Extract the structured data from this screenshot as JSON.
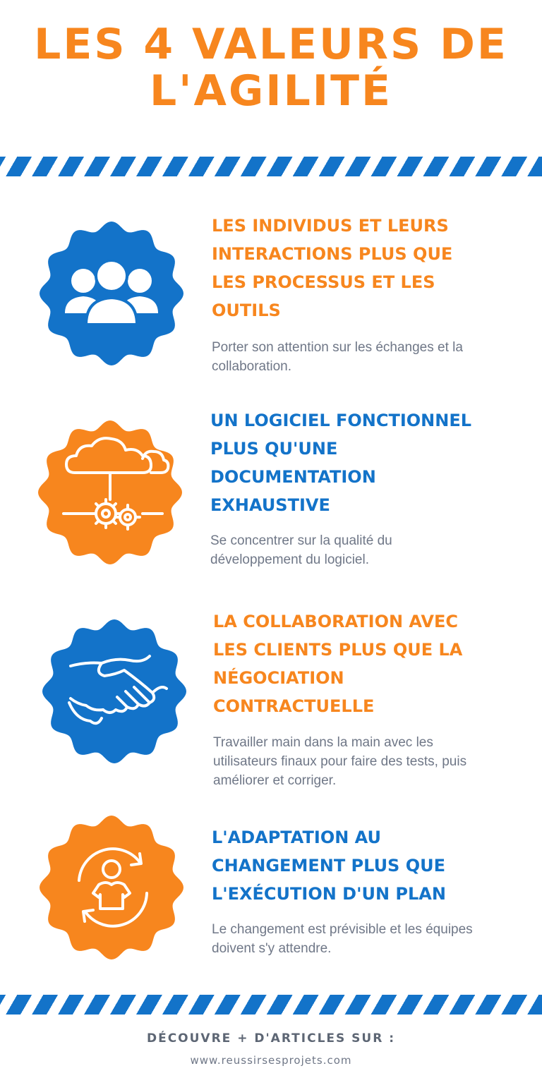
{
  "title": {
    "line1": "LES 4 VALEURS DE",
    "line2": "L'AGILITÉ"
  },
  "colors": {
    "orange": "#f7861e",
    "blue": "#1373c9",
    "text_gray": "#6f7787",
    "footer_gray": "#5d6674"
  },
  "values": [
    {
      "icon": "team-icon",
      "badge_color": "blue",
      "title_color": "orange",
      "title_lines": [
        "LES INDIVIDUS ET LEURS",
        "INTERACTIONS PLUS QUE",
        "LES PROCESSUS ET LES",
        "OUTILS"
      ],
      "description_lines": [
        "Porter son attention sur les échanges et la",
        "collaboration."
      ]
    },
    {
      "icon": "cloud-gears-icon",
      "badge_color": "orange",
      "title_color": "blue",
      "title_lines": [
        "UN LOGICIEL FONCTIONNEL",
        "PLUS QU'UNE",
        "DOCUMENTATION",
        "EXHAUSTIVE"
      ],
      "description_lines": [
        "Se concentrer sur la qualité du",
        "développement du logiciel."
      ]
    },
    {
      "icon": "handshake-icon",
      "badge_color": "blue",
      "title_color": "orange",
      "title_lines": [
        "LA COLLABORATION AVEC",
        "LES CLIENTS PLUS QUE LA",
        "NÉGOCIATION",
        "CONTRACTUELLE"
      ],
      "description_lines": [
        "Travailler main dans la main avec les",
        "utilisateurs finaux pour faire des tests, puis",
        "améliorer et corriger."
      ]
    },
    {
      "icon": "person-cycle-icon",
      "badge_color": "orange",
      "title_color": "blue",
      "title_lines": [
        "L'ADAPTATION AU",
        "CHANGEMENT PLUS QUE",
        "L'EXÉCUTION D'UN PLAN"
      ],
      "description_lines": [
        "Le changement est prévisible et les équipes",
        "doivent s'y attendre."
      ]
    }
  ],
  "footer": {
    "cta": "DÉCOUVRE + D'ARTICLES SUR :",
    "url": "www.reussirsesprojets.com"
  }
}
